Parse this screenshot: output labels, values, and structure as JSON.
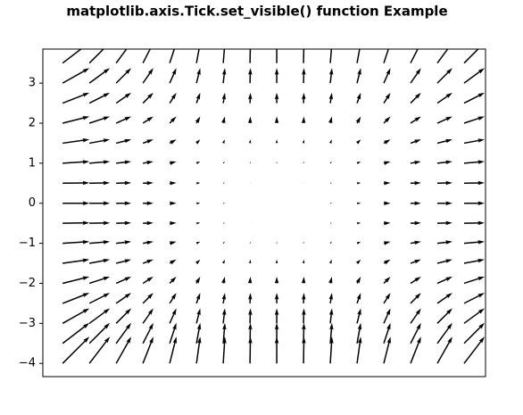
{
  "chart_data": {
    "type": "quiver",
    "title": "matplotlib.axis.Tick.set_visible() function Example",
    "x": [
      -4,
      -3.5,
      -3,
      -2.5,
      -2,
      -1.5,
      -1,
      -0.5,
      0,
      0.5,
      1,
      1.5,
      2,
      2.5,
      3,
      3.5
    ],
    "y": [
      -4,
      -3.5,
      -3,
      -2.5,
      -2,
      -1.5,
      -1,
      -0.5,
      0,
      0.5,
      1,
      1.5,
      2,
      2.5,
      3,
      3.5
    ],
    "u": [
      16,
      12.25,
      9,
      6.25,
      4,
      2.25,
      1,
      0.25,
      0,
      0.25,
      1,
      2.25,
      4,
      6.25,
      9,
      12.25
    ],
    "v": [
      16,
      12.25,
      9,
      6.25,
      4,
      2.25,
      1,
      0.25,
      0,
      0.25,
      1,
      2.25,
      4,
      6.25,
      9,
      12.25
    ],
    "color": "#000000",
    "xlim": [
      -4.37,
      3.9
    ],
    "ylim": [
      -4.33,
      3.85
    ],
    "yticks": [
      {
        "value": -4,
        "label": "−4"
      },
      {
        "value": -3,
        "label": "−3"
      },
      {
        "value": -2,
        "label": "−2"
      },
      {
        "value": -1,
        "label": "−1"
      },
      0,
      1,
      2,
      3
    ]
  }
}
